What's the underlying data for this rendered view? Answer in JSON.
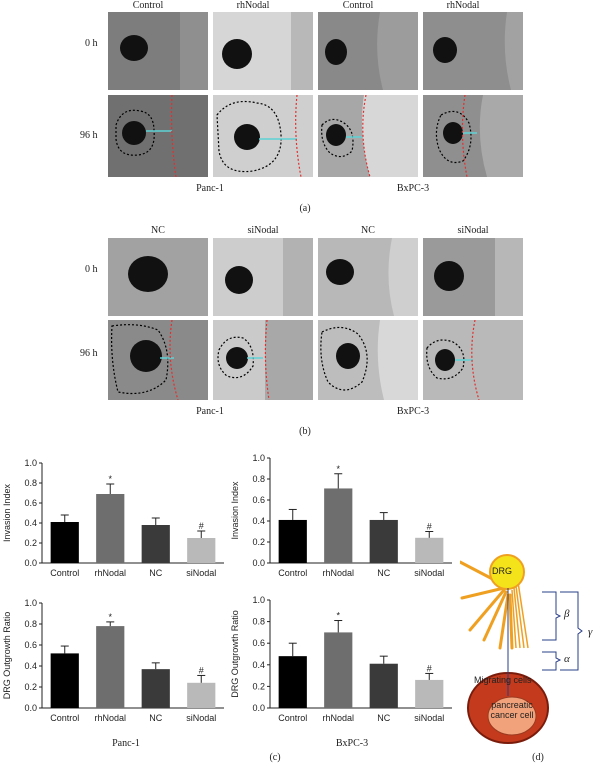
{
  "figure_a": {
    "columns": [
      "Control",
      "rhNodal",
      "Control",
      "rhNodal"
    ],
    "rows": [
      "0 h",
      "96 h"
    ],
    "groups": [
      "Panc-1",
      "BxPC-3"
    ],
    "label": "(a)"
  },
  "figure_b": {
    "columns": [
      "NC",
      "siNodal",
      "NC",
      "siNodal"
    ],
    "rows": [
      "0 h",
      "96 h"
    ],
    "groups": [
      "Panc-1",
      "BxPC-3"
    ],
    "label": "(b)"
  },
  "figure_c": {
    "label": "(c)",
    "groups": [
      "Panc-1",
      "BxPC-3"
    ]
  },
  "figure_d": {
    "label": "(d)",
    "drg": "DRG",
    "beta": "β",
    "alpha": "α",
    "gamma": "γ",
    "migrating": "Migrating cells",
    "cancer_line1": "pancreatic",
    "cancer_line2": "cancer cell"
  },
  "chart_data": [
    {
      "type": "bar",
      "categories": [
        "Control",
        "rhNodal",
        "NC",
        "siNodal"
      ],
      "values": [
        0.41,
        0.69,
        0.38,
        0.25
      ],
      "errors": [
        0.07,
        0.1,
        0.07,
        0.07
      ],
      "marks": [
        "",
        "*",
        "",
        "#"
      ],
      "ylabel": "Invasion Index",
      "ylim": [
        0,
        1.0
      ],
      "yticks": [
        "0.0",
        "0.2",
        "0.4",
        "0.6",
        "0.8",
        "1.0"
      ],
      "colors": [
        "#000000",
        "#6e6e6e",
        "#3a3a3a",
        "#b9b9b9"
      ]
    },
    {
      "type": "bar",
      "categories": [
        "Control",
        "rhNodal",
        "NC",
        "siNodal"
      ],
      "values": [
        0.41,
        0.71,
        0.41,
        0.24
      ],
      "errors": [
        0.1,
        0.14,
        0.07,
        0.06
      ],
      "marks": [
        "",
        "*",
        "",
        "#"
      ],
      "ylabel": "Invasion Index",
      "ylim": [
        0,
        1.0
      ],
      "yticks": [
        "0.0",
        "0.2",
        "0.4",
        "0.6",
        "0.8",
        "1.0"
      ],
      "colors": [
        "#000000",
        "#6e6e6e",
        "#3a3a3a",
        "#b9b9b9"
      ]
    },
    {
      "type": "bar",
      "categories": [
        "Control",
        "rhNodal",
        "NC",
        "siNodal"
      ],
      "values": [
        0.52,
        0.78,
        0.37,
        0.24
      ],
      "errors": [
        0.07,
        0.04,
        0.06,
        0.07
      ],
      "marks": [
        "",
        "*",
        "",
        "#"
      ],
      "ylabel": "DRG Outgrowth Ratio",
      "ylim": [
        0,
        1.0
      ],
      "yticks": [
        "0.0",
        "0.2",
        "0.4",
        "0.6",
        "0.8",
        "1.0"
      ],
      "colors": [
        "#000000",
        "#6e6e6e",
        "#3a3a3a",
        "#b9b9b9"
      ]
    },
    {
      "type": "bar",
      "categories": [
        "Control",
        "rhNodal",
        "NC",
        "siNodal"
      ],
      "values": [
        0.48,
        0.7,
        0.41,
        0.26
      ],
      "errors": [
        0.12,
        0.11,
        0.07,
        0.06
      ],
      "marks": [
        "",
        "*",
        "",
        "#"
      ],
      "ylabel": "DRG Outgrowth Ratio",
      "ylim": [
        0,
        1.0
      ],
      "yticks": [
        "0.0",
        "0.2",
        "0.4",
        "0.6",
        "0.8",
        "1.0"
      ],
      "colors": [
        "#000000",
        "#6e6e6e",
        "#3a3a3a",
        "#b9b9b9"
      ]
    }
  ]
}
